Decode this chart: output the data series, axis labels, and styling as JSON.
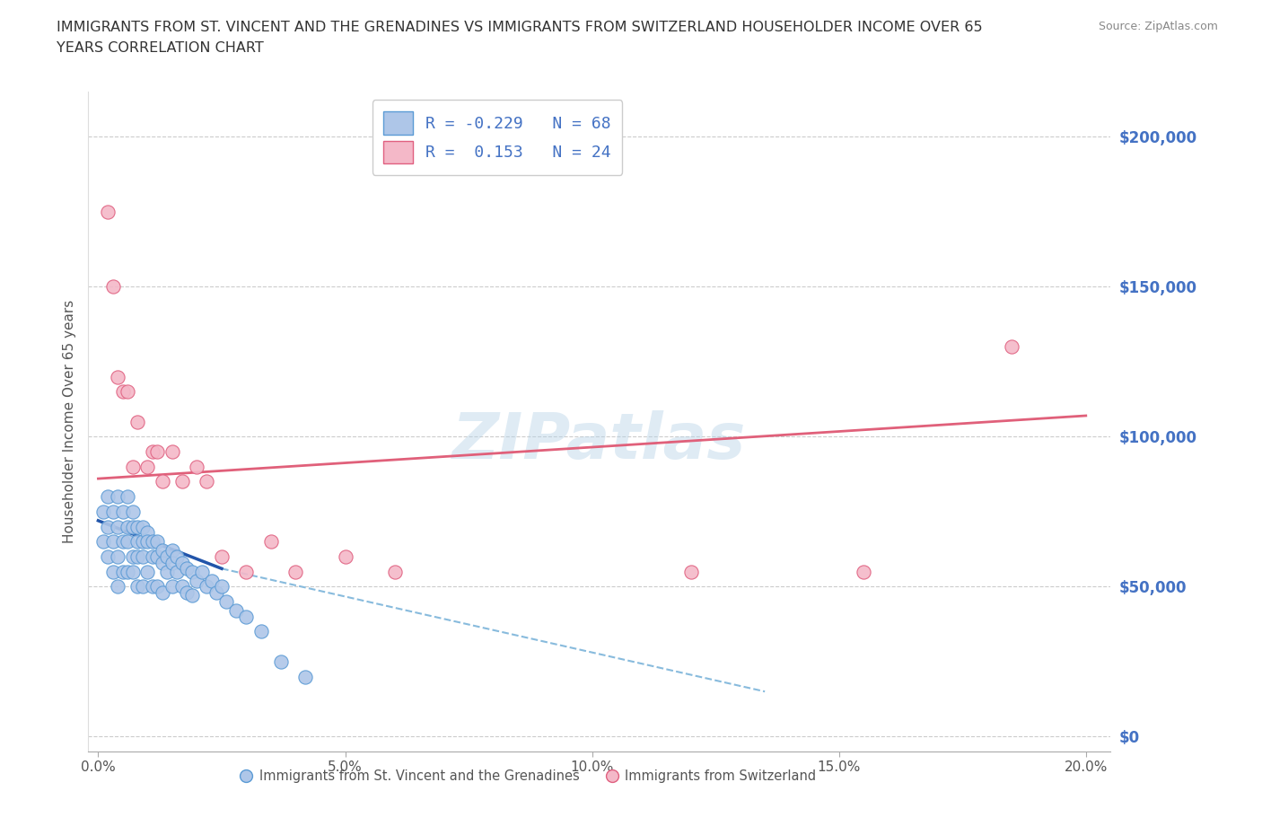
{
  "title_line1": "IMMIGRANTS FROM ST. VINCENT AND THE GRENADINES VS IMMIGRANTS FROM SWITZERLAND HOUSEHOLDER INCOME OVER 65",
  "title_line2": "YEARS CORRELATION CHART",
  "source_text": "Source: ZipAtlas.com",
  "ylabel": "Householder Income Over 65 years",
  "xlim": [
    -0.002,
    0.205
  ],
  "ylim": [
    -5000,
    215000
  ],
  "xticks": [
    0.0,
    0.05,
    0.1,
    0.15,
    0.2
  ],
  "xtick_labels": [
    "0.0%",
    "5.0%",
    "10.0%",
    "15.0%",
    "20.0%"
  ],
  "yticks": [
    0,
    50000,
    100000,
    150000,
    200000
  ],
  "ytick_labels": [
    "$0",
    "$50,000",
    "$100,000",
    "$150,000",
    "$200,000"
  ],
  "blue_scatter_color": "#aec6e8",
  "blue_edge_color": "#5b9bd5",
  "pink_scatter_color": "#f4b8c8",
  "pink_edge_color": "#e06080",
  "blue_trend_solid_color": "#2255aa",
  "blue_trend_dash_color": "#88bbdd",
  "pink_trend_color": "#e0607a",
  "grid_color": "#cccccc",
  "ytick_label_color": "#4472C4",
  "xtick_label_color": "#555555",
  "ylabel_color": "#555555",
  "title_color": "#333333",
  "source_color": "#888888",
  "R_blue": -0.229,
  "N_blue": 68,
  "R_pink": 0.153,
  "N_pink": 24,
  "watermark": "ZIPatlas",
  "legend_label_blue": "Immigrants from St. Vincent and the Grenadines",
  "legend_label_pink": "Immigrants from Switzerland",
  "blue_scatter_x": [
    0.001,
    0.001,
    0.002,
    0.002,
    0.002,
    0.003,
    0.003,
    0.003,
    0.004,
    0.004,
    0.004,
    0.004,
    0.005,
    0.005,
    0.005,
    0.006,
    0.006,
    0.006,
    0.006,
    0.007,
    0.007,
    0.007,
    0.007,
    0.008,
    0.008,
    0.008,
    0.008,
    0.009,
    0.009,
    0.009,
    0.009,
    0.01,
    0.01,
    0.01,
    0.011,
    0.011,
    0.011,
    0.012,
    0.012,
    0.012,
    0.013,
    0.013,
    0.013,
    0.014,
    0.014,
    0.015,
    0.015,
    0.015,
    0.016,
    0.016,
    0.017,
    0.017,
    0.018,
    0.018,
    0.019,
    0.019,
    0.02,
    0.021,
    0.022,
    0.023,
    0.024,
    0.025,
    0.026,
    0.028,
    0.03,
    0.033,
    0.037,
    0.042
  ],
  "blue_scatter_y": [
    65000,
    75000,
    80000,
    70000,
    60000,
    75000,
    65000,
    55000,
    80000,
    70000,
    60000,
    50000,
    75000,
    65000,
    55000,
    80000,
    70000,
    65000,
    55000,
    75000,
    70000,
    60000,
    55000,
    70000,
    65000,
    60000,
    50000,
    70000,
    65000,
    60000,
    50000,
    68000,
    65000,
    55000,
    65000,
    60000,
    50000,
    65000,
    60000,
    50000,
    62000,
    58000,
    48000,
    60000,
    55000,
    62000,
    58000,
    50000,
    60000,
    55000,
    58000,
    50000,
    56000,
    48000,
    55000,
    47000,
    52000,
    55000,
    50000,
    52000,
    48000,
    50000,
    45000,
    42000,
    40000,
    35000,
    25000,
    20000
  ],
  "pink_scatter_x": [
    0.002,
    0.003,
    0.004,
    0.005,
    0.006,
    0.007,
    0.008,
    0.01,
    0.011,
    0.012,
    0.013,
    0.015,
    0.017,
    0.02,
    0.022,
    0.025,
    0.03,
    0.035,
    0.04,
    0.05,
    0.06,
    0.12,
    0.155,
    0.185
  ],
  "pink_scatter_y": [
    175000,
    150000,
    120000,
    115000,
    115000,
    90000,
    105000,
    90000,
    95000,
    95000,
    85000,
    95000,
    85000,
    90000,
    85000,
    60000,
    55000,
    65000,
    55000,
    60000,
    55000,
    55000,
    55000,
    130000
  ],
  "blue_trend_x0": 0.0,
  "blue_trend_y0": 72000,
  "blue_trend_x1": 0.025,
  "blue_trend_y1": 56000,
  "blue_trend_dash_x0": 0.025,
  "blue_trend_dash_y0": 56000,
  "blue_trend_dash_x1": 0.135,
  "blue_trend_dash_y1": 15000,
  "pink_trend_x0": 0.0,
  "pink_trend_y0": 86000,
  "pink_trend_x1": 0.2,
  "pink_trend_y1": 107000
}
